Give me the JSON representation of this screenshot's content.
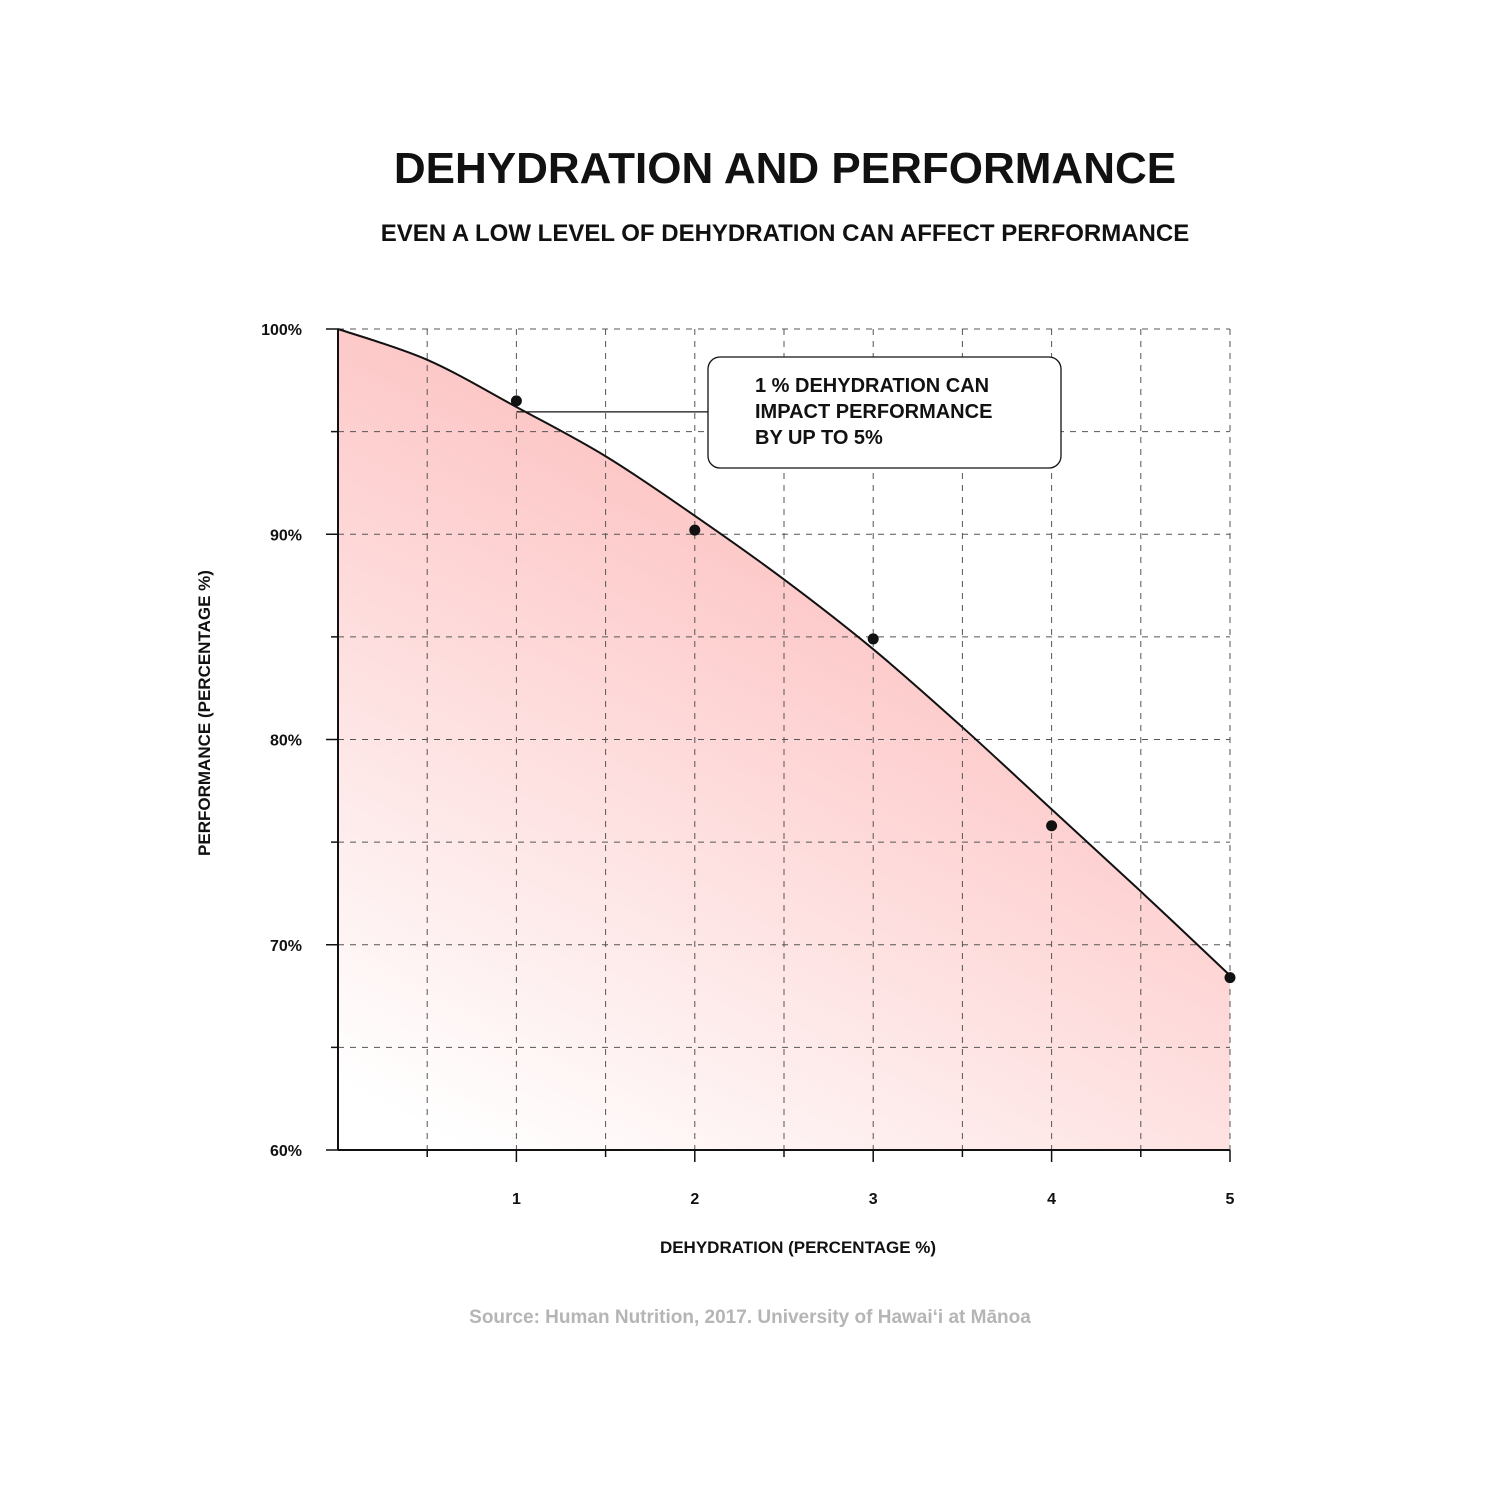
{
  "colors": {
    "background": "#ffffff",
    "ink": "#111111",
    "fill_top": "#fdc4c4",
    "fill_bottom": "#ffffff",
    "grid": "#555555",
    "source_text": "#b5b5b5"
  },
  "chart_data": {
    "type": "line",
    "title": "DEHYDRATION AND PERFORMANCE",
    "subtitle": "EVEN A LOW LEVEL OF DEHYDRATION CAN AFFECT PERFORMANCE",
    "xlabel": "DEHYDRATION (PERCENTAGE %)",
    "ylabel": "PERFORMANCE (PERCENTAGE %)",
    "xlim": [
      0,
      5
    ],
    "ylim": [
      60,
      100
    ],
    "x_ticks": [
      1,
      2,
      3,
      4,
      5
    ],
    "x_tick_labels": [
      "1",
      "2",
      "3",
      "4",
      "5"
    ],
    "x_minor_ticks": [
      0.5,
      1.5,
      2.5,
      3.5,
      4.5
    ],
    "y_ticks": [
      60,
      70,
      80,
      90,
      100
    ],
    "y_tick_labels": [
      "60%",
      "70%",
      "80%",
      "90%",
      "100%"
    ],
    "y_minor_ticks": [
      65,
      75,
      85,
      95
    ],
    "grid": true,
    "area_fill": true,
    "curve": {
      "x": [
        0,
        0.5,
        1,
        1.5,
        2,
        2.5,
        3,
        3.5,
        4,
        4.5,
        5
      ],
      "y": [
        100,
        98.5,
        96.2,
        93.8,
        90.9,
        87.8,
        84.4,
        80.6,
        76.6,
        72.6,
        68.5
      ]
    },
    "points": {
      "x": [
        1,
        2,
        3,
        4,
        5
      ],
      "y": [
        96.5,
        90.2,
        84.9,
        75.8,
        68.4
      ]
    },
    "annotation": {
      "lines": [
        "1 % DEHYDRATION CAN",
        "IMPACT PERFORMANCE",
        "BY UP TO 5%"
      ],
      "anchor_x": 1,
      "anchor_y": 96.5
    },
    "source": "Source: Human Nutrition, 2017. University of Hawai‘i at Mānoa"
  }
}
